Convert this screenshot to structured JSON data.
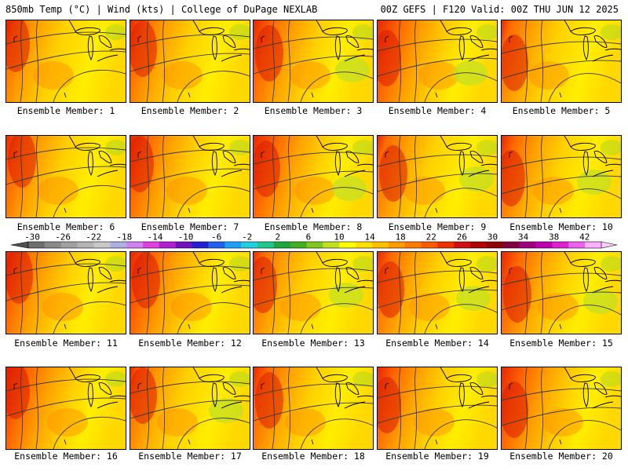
{
  "header": {
    "left": "850mb Temp (°C) | Wind (kts) | College of DuPage NEXLAB",
    "right": "00Z GEFS | F120 Valid: 00Z THU JUN 12 2025"
  },
  "colorbar": {
    "tick_labels": [
      "-30",
      "-26",
      "-22",
      "-18",
      "-14",
      "-10",
      "-6",
      "-2",
      "2",
      "6",
      "10",
      "14",
      "18",
      "22",
      "26",
      "30",
      "34",
      "38",
      "42"
    ],
    "colors": [
      "#6e6e6e",
      "#8a8a8a",
      "#a0a0a0",
      "#b4b4b4",
      "#c8c8c8",
      "#b0b0e0",
      "#d080f0",
      "#e040e0",
      "#b020d0",
      "#7010c0",
      "#2020d0",
      "#2060f0",
      "#20a0f8",
      "#20d0e0",
      "#20c890",
      "#20a840",
      "#40b020",
      "#80c820",
      "#c0e020",
      "#ffff00",
      "#ffe000",
      "#ffc000",
      "#ff9a00",
      "#ff7a00",
      "#ff5a00",
      "#f03000",
      "#d01010",
      "#b00000",
      "#900000",
      "#800040",
      "#a00080",
      "#c000b0",
      "#e020d0",
      "#f060f0",
      "#ffb0ff"
    ]
  },
  "panels": [
    {
      "label": "Ensemble Member: 1"
    },
    {
      "label": "Ensemble Member: 2"
    },
    {
      "label": "Ensemble Member: 3"
    },
    {
      "label": "Ensemble Member: 4"
    },
    {
      "label": "Ensemble Member: 5"
    },
    {
      "label": "Ensemble Member: 6"
    },
    {
      "label": "Ensemble Member: 7"
    },
    {
      "label": "Ensemble Member: 8"
    },
    {
      "label": "Ensemble Member: 9"
    },
    {
      "label": "Ensemble Member: 10"
    },
    {
      "label": "Ensemble Member: 11"
    },
    {
      "label": "Ensemble Member: 12"
    },
    {
      "label": "Ensemble Member: 13"
    },
    {
      "label": "Ensemble Member: 14"
    },
    {
      "label": "Ensemble Member: 15"
    },
    {
      "label": "Ensemble Member: 16"
    },
    {
      "label": "Ensemble Member: 17"
    },
    {
      "label": "Ensemble Member: 18"
    },
    {
      "label": "Ensemble Member: 19"
    },
    {
      "label": "Ensemble Member: 20"
    }
  ]
}
